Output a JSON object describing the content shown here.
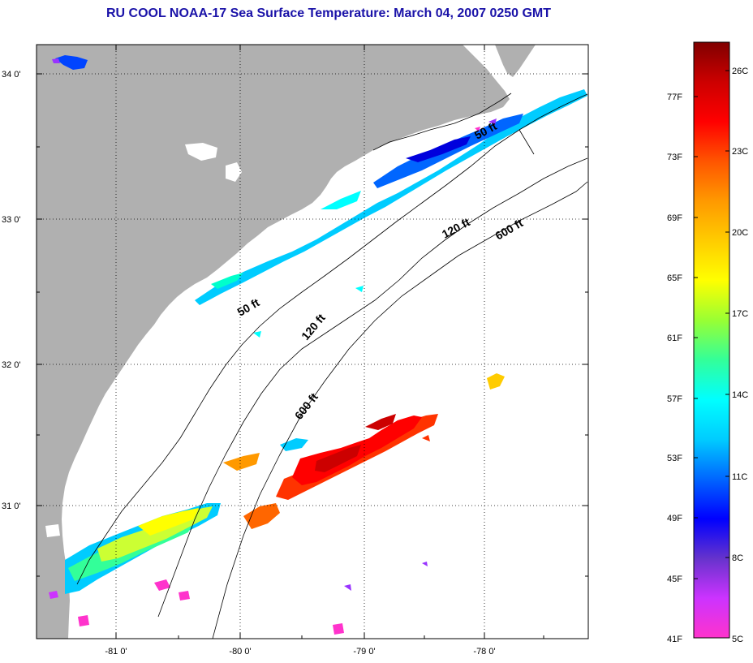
{
  "title": "RU COOL  NOAA-17  Sea Surface Temperature:  March 04, 2007 0250 GMT",
  "map": {
    "lat_labels": [
      {
        "value": 34,
        "text": "34 0'"
      },
      {
        "value": 33,
        "text": "33 0'"
      },
      {
        "value": 32,
        "text": "32 0'"
      },
      {
        "value": 31,
        "text": "31 0'"
      }
    ],
    "lon_labels": [
      {
        "value": -81,
        "text": "-81 0'"
      },
      {
        "value": -80,
        "text": "-80 0'"
      },
      {
        "value": -79,
        "text": "-79 0'"
      },
      {
        "value": -78,
        "text": "-78 0'"
      }
    ],
    "contour_labels": [
      "50 ft",
      "120 ft",
      "600 ft",
      "50 ft",
      "120 ft",
      "600 ft"
    ],
    "colors": {
      "land": "#b0b0b0",
      "ocean": "#ffffff",
      "cloud": "#ffffff"
    }
  },
  "colorbar": {
    "fahrenheit": [
      "77F",
      "73F",
      "69F",
      "65F",
      "61F",
      "57F",
      "53F",
      "49F",
      "45F",
      "41F"
    ],
    "celsius": [
      "26C",
      "23C",
      "20C",
      "17C",
      "14C",
      "11C",
      "8C",
      "5C"
    ],
    "stops": [
      "#ff33cc",
      "#cc33ff",
      "#6633cc",
      "#0000ff",
      "#0066ff",
      "#00ccff",
      "#00ffff",
      "#33ff99",
      "#99ff33",
      "#ffff00",
      "#ffcc00",
      "#ff9900",
      "#ff5500",
      "#ff0000",
      "#cc0000",
      "#800000"
    ]
  }
}
